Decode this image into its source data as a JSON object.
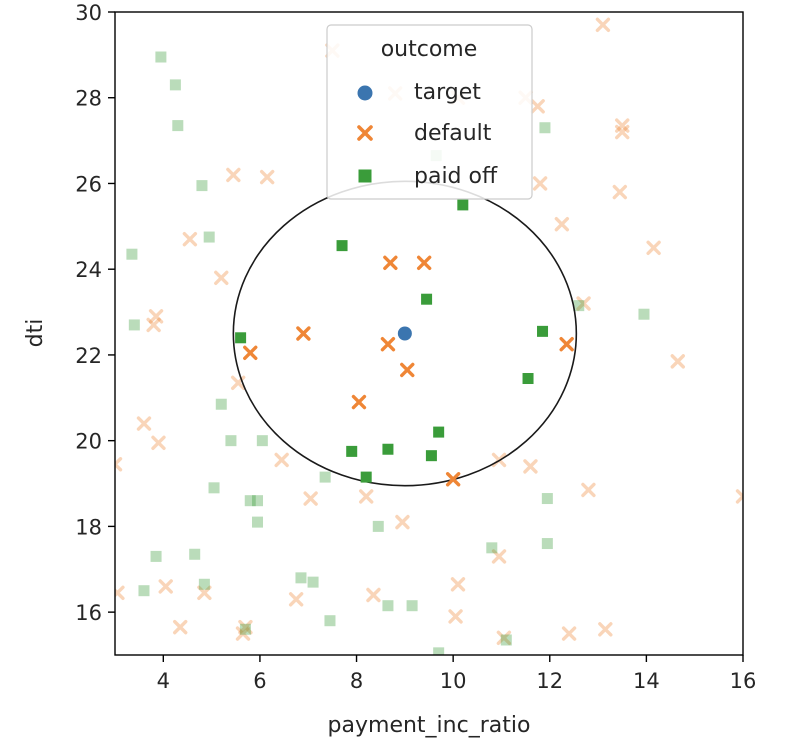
{
  "chart_data": {
    "type": "scatter",
    "xlabel": "payment_inc_ratio",
    "ylabel": "dti",
    "xlim": [
      3,
      16
    ],
    "ylim": [
      15,
      30
    ],
    "x_ticks": [
      4,
      6,
      8,
      10,
      12,
      14,
      16
    ],
    "y_ticks": [
      16,
      18,
      20,
      22,
      24,
      26,
      28,
      30
    ],
    "x_tick_labels": [
      "4",
      "6",
      "8",
      "10",
      "12",
      "14",
      "16"
    ],
    "y_tick_labels": [
      "16",
      "18",
      "20",
      "22",
      "24",
      "26",
      "28",
      "30"
    ],
    "grid": false,
    "legend": {
      "title": "outcome",
      "placement": "top-center",
      "entries": [
        "target",
        "default",
        "paid off"
      ]
    },
    "colors": {
      "target": "#3b75af",
      "default": "#ef8636",
      "paid_off": "#3a9c3a"
    },
    "circle": {
      "center": [
        9.0,
        22.5
      ],
      "rx": 3.55,
      "ry": 3.55
    },
    "series": [
      {
        "name": "target",
        "marker": "circle",
        "points": [
          [
            9.0,
            22.5
          ]
        ]
      },
      {
        "name": "default",
        "marker": "x",
        "points": [
          [
            8.7,
            24.15
          ],
          [
            9.4,
            24.15
          ],
          [
            6.9,
            22.5
          ],
          [
            8.65,
            22.25
          ],
          [
            5.8,
            22.05
          ],
          [
            9.05,
            21.65
          ],
          [
            8.05,
            20.9
          ],
          [
            10.0,
            19.1
          ],
          [
            12.35,
            22.25
          ]
        ]
      },
      {
        "name": "paid off",
        "marker": "square",
        "points": [
          [
            7.7,
            24.55
          ],
          [
            10.2,
            25.5
          ],
          [
            9.45,
            23.3
          ],
          [
            5.6,
            22.4
          ],
          [
            11.85,
            22.55
          ],
          [
            11.55,
            21.45
          ],
          [
            9.7,
            20.2
          ],
          [
            7.9,
            19.75
          ],
          [
            8.65,
            19.8
          ],
          [
            9.55,
            19.65
          ],
          [
            8.2,
            19.15
          ]
        ]
      },
      {
        "name": "default",
        "marker": "x",
        "faded": true,
        "points": [
          [
            13.1,
            29.7
          ],
          [
            7.5,
            29.1
          ],
          [
            8.8,
            28.1
          ],
          [
            10.1,
            28.0
          ],
          [
            11.5,
            28.0
          ],
          [
            11.75,
            27.8
          ],
          [
            13.5,
            27.35
          ],
          [
            13.5,
            27.2
          ],
          [
            5.45,
            26.2
          ],
          [
            6.15,
            26.15
          ],
          [
            11.8,
            26.0
          ],
          [
            13.45,
            25.8
          ],
          [
            12.25,
            25.05
          ],
          [
            14.15,
            24.5
          ],
          [
            4.55,
            24.7
          ],
          [
            5.2,
            23.8
          ],
          [
            12.7,
            23.2
          ],
          [
            3.85,
            22.9
          ],
          [
            3.8,
            22.7
          ],
          [
            14.65,
            21.85
          ],
          [
            5.55,
            21.35
          ],
          [
            3.6,
            20.4
          ],
          [
            3.9,
            19.95
          ],
          [
            6.45,
            19.55
          ],
          [
            11.6,
            19.4
          ],
          [
            10.95,
            19.55
          ],
          [
            12.8,
            18.85
          ],
          [
            7.05,
            18.65
          ],
          [
            8.2,
            18.7
          ],
          [
            8.95,
            18.1
          ],
          [
            10.95,
            17.3
          ],
          [
            4.05,
            16.6
          ],
          [
            4.85,
            16.45
          ],
          [
            6.75,
            16.3
          ],
          [
            8.35,
            16.4
          ],
          [
            10.1,
            16.65
          ],
          [
            4.35,
            15.65
          ],
          [
            5.7,
            15.65
          ],
          [
            5.65,
            15.5
          ],
          [
            10.05,
            15.9
          ],
          [
            11.05,
            15.4
          ],
          [
            12.4,
            15.5
          ],
          [
            13.15,
            15.6
          ],
          [
            16.0,
            18.7
          ],
          [
            3.0,
            19.45
          ],
          [
            3.05,
            16.45
          ]
        ]
      },
      {
        "name": "paid off",
        "marker": "square",
        "faded": true,
        "points": [
          [
            3.95,
            28.95
          ],
          [
            4.25,
            28.3
          ],
          [
            4.3,
            27.35
          ],
          [
            4.8,
            25.95
          ],
          [
            9.65,
            26.65
          ],
          [
            11.9,
            27.3
          ],
          [
            4.95,
            24.75
          ],
          [
            3.35,
            24.35
          ],
          [
            3.4,
            22.7
          ],
          [
            13.95,
            22.95
          ],
          [
            12.6,
            23.15
          ],
          [
            5.2,
            20.85
          ],
          [
            5.4,
            20.0
          ],
          [
            6.05,
            20.0
          ],
          [
            7.35,
            19.15
          ],
          [
            5.05,
            18.9
          ],
          [
            5.8,
            18.6
          ],
          [
            5.95,
            18.6
          ],
          [
            5.95,
            18.1
          ],
          [
            8.45,
            18.0
          ],
          [
            3.85,
            17.3
          ],
          [
            4.65,
            17.35
          ],
          [
            10.8,
            17.5
          ],
          [
            11.95,
            17.6
          ],
          [
            11.95,
            18.65
          ],
          [
            4.85,
            16.65
          ],
          [
            6.85,
            16.8
          ],
          [
            7.1,
            16.7
          ],
          [
            3.6,
            16.5
          ],
          [
            8.65,
            16.15
          ],
          [
            9.15,
            16.15
          ],
          [
            7.45,
            15.8
          ],
          [
            9.7,
            15.05
          ],
          [
            11.1,
            15.35
          ],
          [
            5.7,
            15.6
          ]
        ]
      }
    ]
  }
}
